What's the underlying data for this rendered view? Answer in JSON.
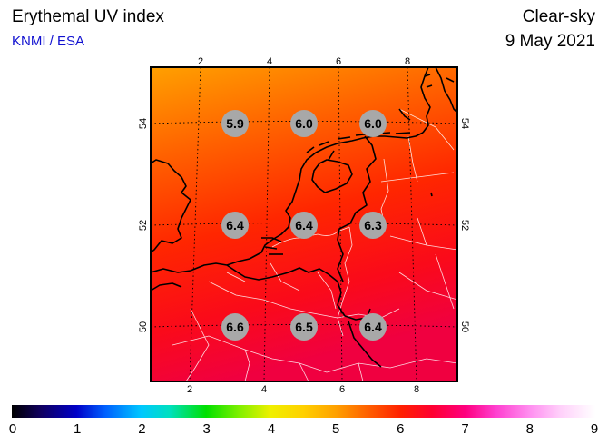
{
  "header": {
    "title": "Erythemal UV index",
    "credit": "KNMI / ESA",
    "condition": "Clear-sky",
    "date": "9 May 2021"
  },
  "map": {
    "region": "Netherlands / Benelux",
    "lon_ticks_top": [
      "2",
      "4",
      "6",
      "8"
    ],
    "lon_ticks_bottom": [
      "2",
      "4",
      "6",
      "8"
    ],
    "lat_ticks": [
      "54",
      "52",
      "50"
    ],
    "uv_values": [
      {
        "lon": 3,
        "lat": 54,
        "value": "5.9"
      },
      {
        "lon": 5,
        "lat": 54,
        "value": "6.0"
      },
      {
        "lon": 7,
        "lat": 54,
        "value": "6.0"
      },
      {
        "lon": 3,
        "lat": 52,
        "value": "6.4"
      },
      {
        "lon": 5,
        "lat": 52,
        "value": "6.4"
      },
      {
        "lon": 7,
        "lat": 52,
        "value": "6.3"
      },
      {
        "lon": 3,
        "lat": 50,
        "value": "6.6"
      },
      {
        "lon": 5,
        "lat": 50,
        "value": "6.5"
      },
      {
        "lon": 7,
        "lat": 50,
        "value": "6.4"
      }
    ]
  },
  "colorbar": {
    "labels": [
      "0",
      "1",
      "2",
      "3",
      "4",
      "5",
      "6",
      "7",
      "8",
      "9"
    ],
    "min": 0,
    "max": 9
  },
  "colors": {
    "credit_blue": "#1010d0",
    "marker_grey": "#a8a8a8",
    "field_top": "#ffa000",
    "field_bottom": "#f00040"
  }
}
